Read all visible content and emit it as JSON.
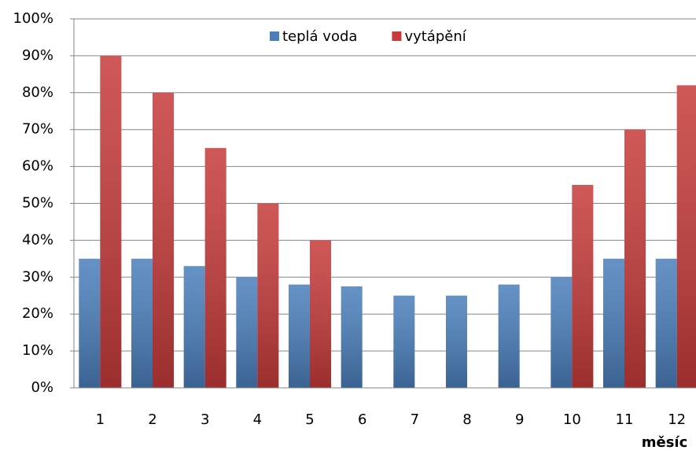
{
  "chart_data": {
    "type": "bar",
    "categories": [
      "1",
      "2",
      "3",
      "4",
      "5",
      "6",
      "7",
      "8",
      "9",
      "10",
      "11",
      "12"
    ],
    "series": [
      {
        "name": "teplá voda",
        "color": "#4a7ebb",
        "values": [
          35,
          35,
          33,
          30,
          28,
          27.5,
          25,
          25,
          28,
          30,
          35,
          35
        ]
      },
      {
        "name": "vytápění",
        "color": "#c63a3a",
        "values": [
          90,
          80,
          65,
          50,
          40,
          0,
          0,
          0,
          0,
          55,
          70,
          82
        ]
      }
    ],
    "x_label": "měsíc",
    "ylim": [
      0,
      100
    ],
    "yticks": [
      {
        "value": 0,
        "label": "0%"
      },
      {
        "value": 10,
        "label": "10%"
      },
      {
        "value": 20,
        "label": "20%"
      },
      {
        "value": 30,
        "label": "30%"
      },
      {
        "value": 40,
        "label": "40%"
      },
      {
        "value": 50,
        "label": "50%"
      },
      {
        "value": 60,
        "label": "60%"
      },
      {
        "value": 70,
        "label": "70%"
      },
      {
        "value": 80,
        "label": "80%"
      },
      {
        "value": 90,
        "label": "90%"
      },
      {
        "value": 100,
        "label": "100%"
      }
    ],
    "grid": true,
    "legend": "top"
  }
}
